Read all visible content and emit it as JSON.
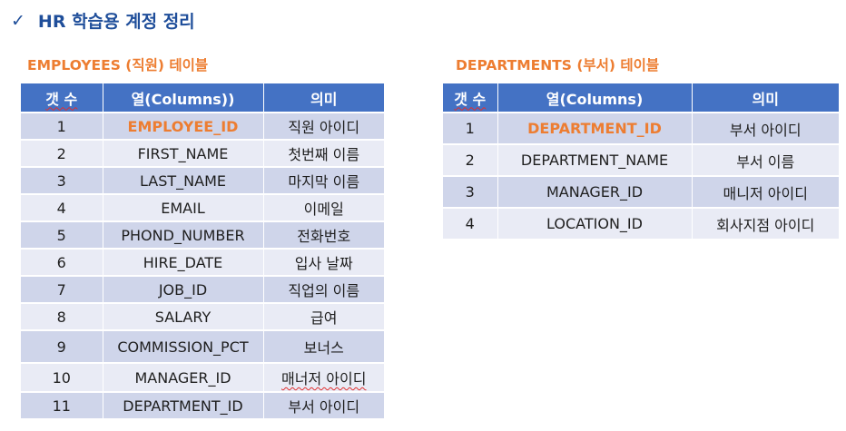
{
  "heading": {
    "check_icon": "✓",
    "title": "HR 학습용 계정 정리"
  },
  "employees": {
    "title": "EMPLOYEES (직원) 테이블",
    "headers": [
      "갯 수",
      "열(Columns))",
      "의미"
    ],
    "rows": [
      [
        "1",
        "EMPLOYEE_ID",
        "직원 아이디"
      ],
      [
        "2",
        "FIRST_NAME",
        "첫번째 이름"
      ],
      [
        "3",
        "LAST_NAME",
        "마지막 이름"
      ],
      [
        "4",
        "EMAIL",
        "이메일"
      ],
      [
        "5",
        "PHOND_NUMBER",
        "전화번호"
      ],
      [
        "6",
        "HIRE_DATE",
        "입사 날짜"
      ],
      [
        "7",
        "JOB_ID",
        "직업의 이름"
      ],
      [
        "8",
        "SALARY",
        "급여"
      ],
      [
        "9",
        "COMMISSION_PCT",
        "보너스"
      ],
      [
        "10",
        "MANAGER_ID",
        "매너저 아이디"
      ],
      [
        "11",
        "DEPARTMENT_ID",
        "부서 아이디"
      ]
    ]
  },
  "departments": {
    "title": "DEPARTMENTS (부서) 테이블",
    "headers": [
      "갯 수",
      "열(Columns)",
      "의미"
    ],
    "rows": [
      [
        "1",
        "DEPARTMENT_ID",
        "부서 아이디"
      ],
      [
        "2",
        "DEPARTMENT_NAME",
        "부서 이름"
      ],
      [
        "3",
        "MANAGER_ID",
        "매니저 아이디"
      ],
      [
        "4",
        "LOCATION_ID",
        "회사지점 아이디"
      ]
    ]
  },
  "colors": {
    "accent": "#ed7d31",
    "header_bg": "#4472c4",
    "title_blue": "#1f4e9a"
  }
}
